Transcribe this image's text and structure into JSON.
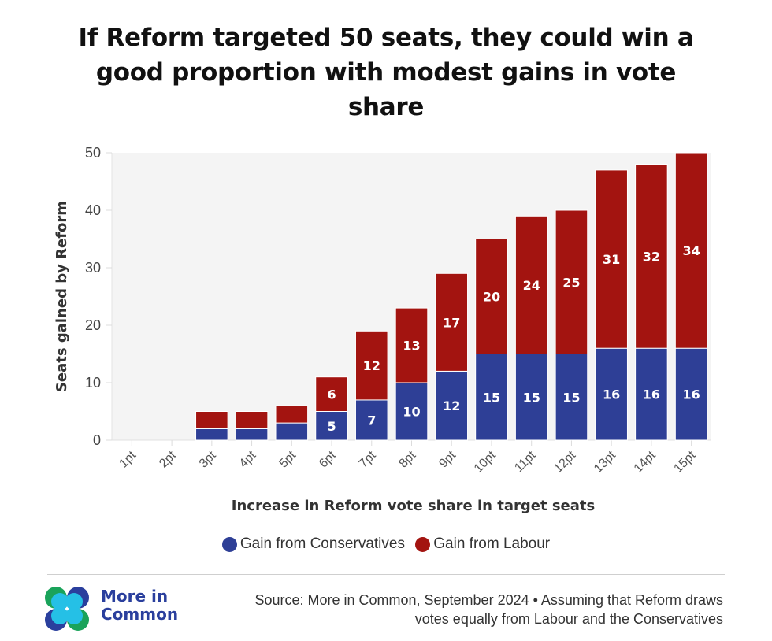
{
  "title": "If Reform targeted 50 seats, they could win a good proportion with modest gains in vote share",
  "title_lines": [
    "If Reform targeted 50 seats, they could win a",
    "good proportion with modest gains in vote",
    "share"
  ],
  "colors": {
    "conservatives": "#2e3f96",
    "labour": "#a31410",
    "plot_bg": "#f4f4f4",
    "logo_green": "#1aa35a",
    "logo_blue": "#2a3f9d",
    "logo_cyan": "#25c0e6"
  },
  "chart_data": {
    "type": "bar",
    "stacked": true,
    "title": "If Reform targeted 50 seats, they could win a good proportion with modest gains in vote share",
    "xlabel": "Increase in Reform vote share in target seats",
    "ylabel": "Seats gained by Reform",
    "ylim": [
      0,
      50
    ],
    "yticks": [
      "0",
      "10",
      "20",
      "30",
      "40",
      "50"
    ],
    "categories": [
      "1pt",
      "2pt",
      "3pt",
      "4pt",
      "5pt",
      "6pt",
      "7pt",
      "8pt",
      "9pt",
      "10pt",
      "11pt",
      "12pt",
      "13pt",
      "14pt",
      "15pt"
    ],
    "series": [
      {
        "name": "Gain from Conservatives",
        "values": [
          0,
          0,
          2,
          2,
          3,
          5,
          7,
          10,
          12,
          15,
          15,
          15,
          16,
          16,
          16
        ],
        "labels": [
          "",
          "",
          "",
          "",
          "",
          "5",
          "7",
          "10",
          "12",
          "15",
          "15",
          "15",
          "16",
          "16",
          "16"
        ]
      },
      {
        "name": "Gain from Labour",
        "values": [
          0,
          0,
          3,
          3,
          3,
          6,
          12,
          13,
          17,
          20,
          24,
          25,
          31,
          32,
          34
        ],
        "labels": [
          "",
          "",
          "",
          "",
          "",
          "6",
          "12",
          "13",
          "17",
          "20",
          "24",
          "25",
          "31",
          "32",
          "34"
        ]
      }
    ],
    "legend": "bottom",
    "grid": false
  },
  "legend": {
    "conservatives": "Gain from Conservatives",
    "labour": "Gain from Labour"
  },
  "footer": {
    "logo_text_line1": "More in",
    "logo_text_line2": "Common",
    "source_line1": "Source: More in Common, September 2024 • Assuming that Reform draws",
    "source_line2": "votes equally from Labour and the Conservatives"
  }
}
